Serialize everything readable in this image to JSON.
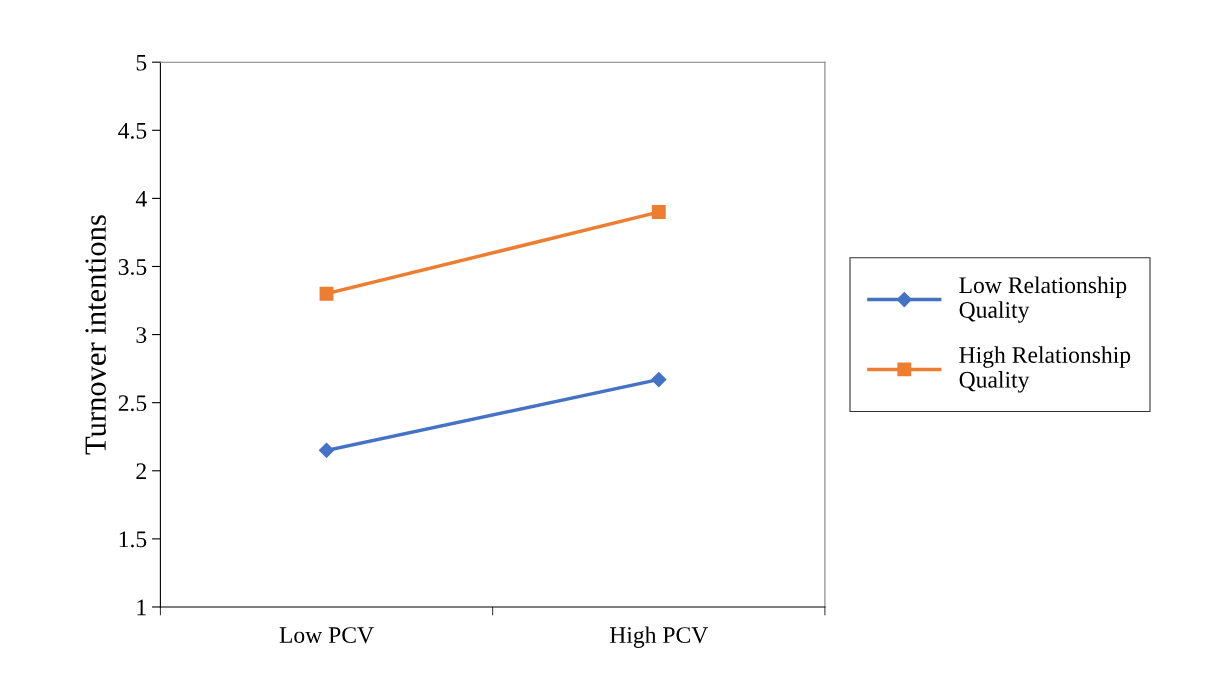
{
  "chart_data": {
    "type": "line",
    "ylabel": "Turnover intentions",
    "categories": [
      "Low PCV",
      "High PCV"
    ],
    "series": [
      {
        "name": "Low Relationship\nQuality",
        "color": "#4472c4",
        "marker": "diamond",
        "values": [
          2.15,
          2.67
        ]
      },
      {
        "name": "High Relationship\nQuality",
        "color": "#ed7d31",
        "marker": "square",
        "values": [
          3.3,
          3.9
        ]
      }
    ],
    "ylim": [
      1,
      5
    ],
    "yticks": [
      1,
      1.5,
      2,
      2.5,
      3,
      3.5,
      4,
      4.5,
      5
    ],
    "grid": false,
    "legend": "right",
    "line_style": "solid"
  }
}
